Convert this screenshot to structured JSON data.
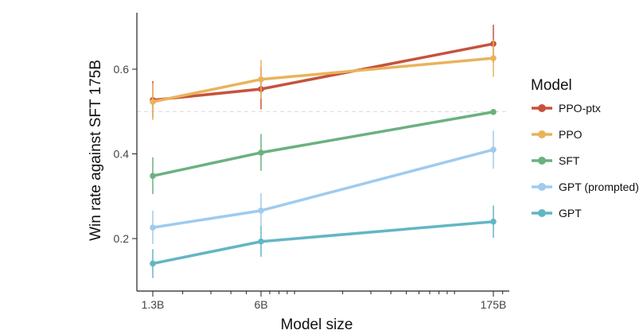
{
  "chart_data": {
    "type": "line",
    "xscale": "log",
    "x_values": [
      1.3,
      6,
      175
    ],
    "categories": [
      "1.3B",
      "6B",
      "175B"
    ],
    "xlabel": "Model size",
    "ylabel": "Win rate against SFT 175B",
    "ylim": [
      0.09,
      0.72
    ],
    "yticks": [
      0.2,
      0.4,
      0.6
    ],
    "ytick_labels": [
      "0.2",
      "0.4",
      "0.6"
    ],
    "reference_line": 0.5,
    "legend_title": "Model",
    "legend_position": "right",
    "series": [
      {
        "name": "PPO-ptx",
        "color": "#c6523b",
        "values": [
          0.527,
          0.553,
          0.66
        ],
        "err_low": [
          0.485,
          0.505,
          0.615
        ],
        "err_high": [
          0.572,
          0.605,
          0.705
        ]
      },
      {
        "name": "PPO",
        "color": "#e9b35b",
        "values": [
          0.523,
          0.576,
          0.626
        ],
        "err_low": [
          0.48,
          0.53,
          0.582
        ],
        "err_high": [
          0.567,
          0.622,
          0.67
        ]
      },
      {
        "name": "SFT",
        "color": "#6bb17f",
        "values": [
          0.348,
          0.403,
          0.499
        ],
        "err_low": [
          0.305,
          0.36,
          0.499
        ],
        "err_high": [
          0.392,
          0.447,
          0.499
        ]
      },
      {
        "name": "GPT (prompted)",
        "color": "#9fcbee",
        "values": [
          0.226,
          0.266,
          0.41
        ],
        "err_low": [
          0.187,
          0.224,
          0.365
        ],
        "err_high": [
          0.266,
          0.307,
          0.455
        ]
      },
      {
        "name": "GPT",
        "color": "#62b6c4",
        "values": [
          0.141,
          0.193,
          0.24
        ],
        "err_low": [
          0.107,
          0.157,
          0.202
        ],
        "err_high": [
          0.175,
          0.229,
          0.278
        ]
      }
    ]
  }
}
